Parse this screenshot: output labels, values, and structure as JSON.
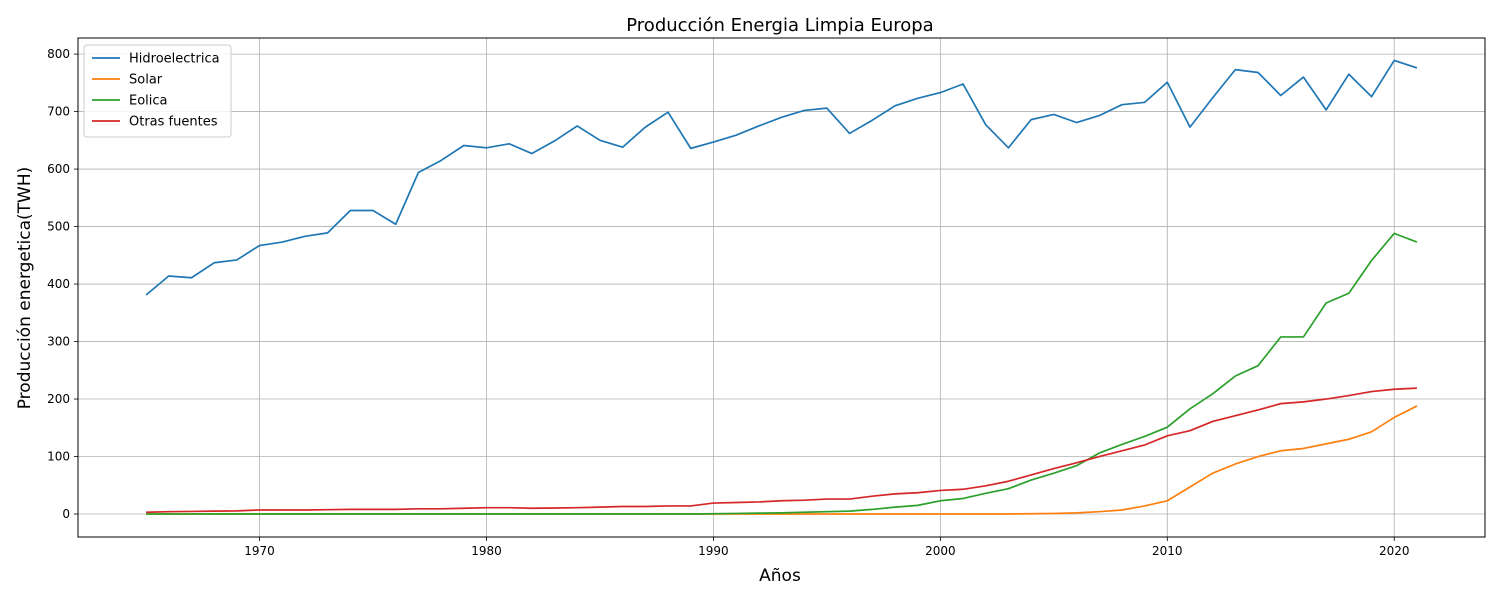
{
  "chart_data": {
    "type": "line",
    "title": "Producción Energia Limpia Europa",
    "xlabel": "Años",
    "ylabel": "Producción energetica(TWH)",
    "xlim": [
      1962,
      2024
    ],
    "ylim": [
      -40,
      828
    ],
    "xticks": [
      1970,
      1980,
      1990,
      2000,
      2010,
      2020
    ],
    "yticks": [
      0,
      100,
      200,
      300,
      400,
      500,
      600,
      700,
      800
    ],
    "grid": true,
    "legend_position": "top-left",
    "x": [
      1965,
      1966,
      1967,
      1968,
      1969,
      1970,
      1971,
      1972,
      1973,
      1974,
      1975,
      1976,
      1977,
      1978,
      1979,
      1980,
      1981,
      1982,
      1983,
      1984,
      1985,
      1986,
      1987,
      1988,
      1989,
      1990,
      1991,
      1992,
      1993,
      1994,
      1995,
      1996,
      1997,
      1998,
      1999,
      2000,
      2001,
      2002,
      2003,
      2004,
      2005,
      2006,
      2007,
      2008,
      2009,
      2010,
      2011,
      2012,
      2013,
      2014,
      2015,
      2016,
      2017,
      2018,
      2019,
      2020,
      2021
    ],
    "series": [
      {
        "name": "Hidroelectrica",
        "color": "#1f77b4",
        "values": [
          381,
          414,
          411,
          437,
          442,
          467,
          473,
          483,
          489,
          528,
          528,
          504,
          594,
          615,
          641,
          637,
          644,
          627,
          649,
          675,
          650,
          638,
          673,
          699,
          636,
          647,
          659,
          675,
          690,
          702,
          706,
          662,
          685,
          710,
          723,
          733,
          748,
          677,
          637,
          686,
          695,
          681,
          693,
          712,
          716,
          751,
          673,
          724,
          773,
          768,
          728,
          760,
          703,
          765,
          726,
          789,
          776
        ]
      },
      {
        "name": "Solar",
        "color": "#ff7f0e",
        "values": [
          0,
          0,
          0,
          0,
          0,
          0,
          0,
          0,
          0,
          0,
          0,
          0,
          0,
          0,
          0,
          0,
          0,
          0,
          0,
          0,
          0,
          0,
          0,
          0,
          0,
          0,
          0,
          0,
          0,
          0,
          0,
          0,
          0,
          0,
          0,
          0,
          0,
          0,
          0,
          0.5,
          1,
          2,
          4,
          7,
          14,
          23,
          47,
          71,
          87,
          100,
          110,
          114,
          122,
          130,
          143,
          168,
          188
        ]
      },
      {
        "name": "Eolica",
        "color": "#2ca02c",
        "values": [
          0,
          0,
          0,
          0,
          0,
          0,
          0,
          0,
          0,
          0,
          0,
          0,
          0,
          0,
          0,
          0,
          0,
          0,
          0,
          0,
          0,
          0,
          0,
          0,
          0,
          0.5,
          1,
          1.5,
          2,
          3,
          4,
          5,
          8,
          12,
          15,
          23,
          27,
          36,
          44,
          59,
          71,
          84,
          106,
          121,
          135,
          151,
          183,
          209,
          240,
          258,
          308,
          308,
          367,
          384,
          441,
          488,
          473
        ]
      },
      {
        "name": "Otras fuentes",
        "color": "#d62728",
        "values": [
          3,
          4,
          4.5,
          5,
          5.5,
          7,
          7,
          7,
          7.5,
          8,
          8,
          8,
          9,
          9,
          10,
          11,
          11,
          10,
          10.5,
          11,
          12,
          13,
          13,
          14,
          14,
          19,
          20,
          21,
          23,
          24,
          26,
          26,
          31,
          35,
          37,
          41,
          43,
          49,
          57,
          68,
          79,
          89,
          100,
          110,
          120,
          136,
          145,
          161,
          171,
          181,
          192,
          195,
          200,
          206,
          213,
          217,
          219
        ]
      }
    ]
  }
}
